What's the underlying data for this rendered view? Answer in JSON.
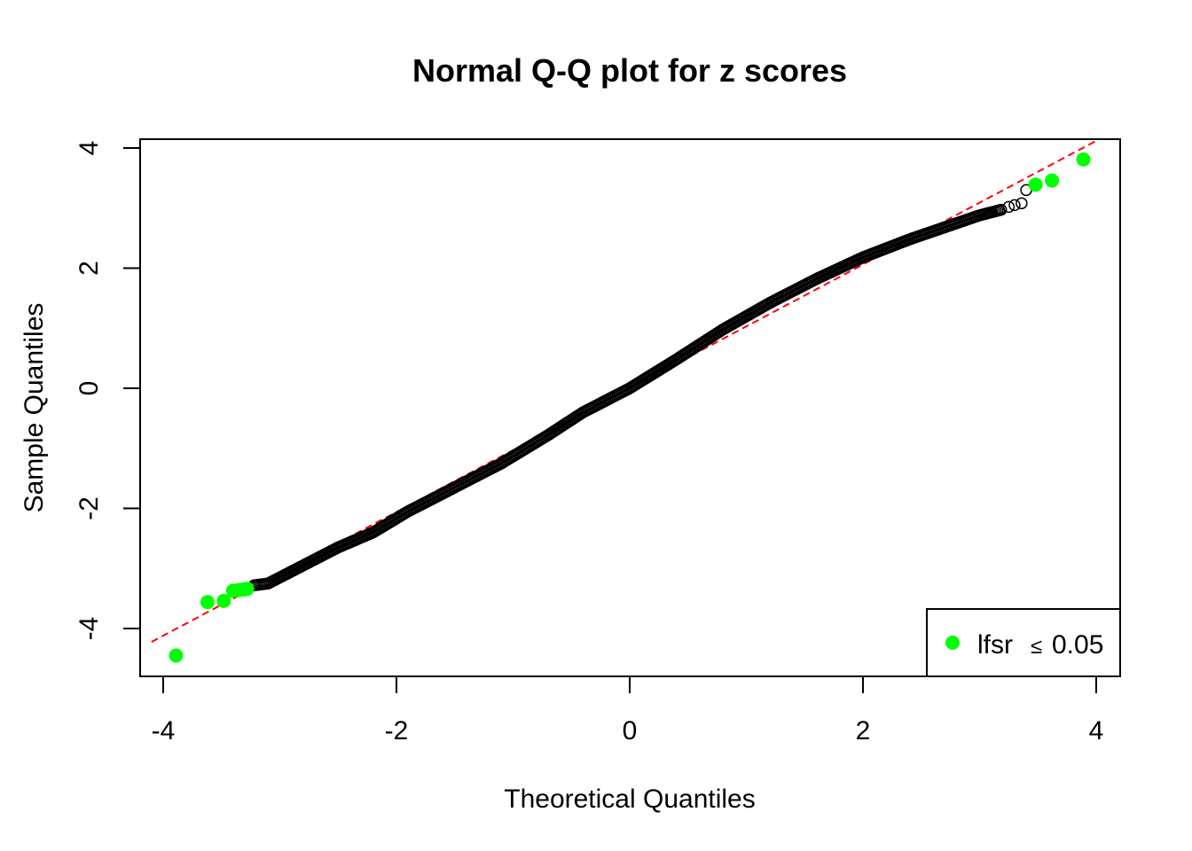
{
  "chart_data": {
    "type": "scatter",
    "title": "Normal Q-Q plot for z scores",
    "xlabel": "Theoretical Quantiles",
    "ylabel": "Sample Quantiles",
    "xlim": [
      -4.1,
      4.1
    ],
    "ylim": [
      -4.6,
      4.3
    ],
    "x_ticks": [
      -4,
      -2,
      0,
      2,
      4
    ],
    "y_ticks": [
      -4,
      -2,
      0,
      2,
      4
    ],
    "x_tick_labels": [
      "-4",
      "-2",
      "0",
      "2",
      "4"
    ],
    "y_tick_labels": [
      "-4",
      "-2",
      "0",
      "2",
      "4"
    ],
    "grid": false,
    "reference_line": {
      "style": "dashed",
      "color": "#ff0000",
      "intercept": 0.0,
      "slope": 1.03
    },
    "qq_curve": {
      "description": "dense run of black open circles",
      "color": "#000000",
      "knots": [
        [
          -3.22,
          -3.28
        ],
        [
          -3.1,
          -3.25
        ],
        [
          -2.9,
          -3.05
        ],
        [
          -2.7,
          -2.85
        ],
        [
          -2.5,
          -2.65
        ],
        [
          -2.2,
          -2.4
        ],
        [
          -1.9,
          -2.05
        ],
        [
          -1.5,
          -1.65
        ],
        [
          -1.1,
          -1.25
        ],
        [
          -0.7,
          -0.78
        ],
        [
          -0.4,
          -0.4
        ],
        [
          0.0,
          0.0
        ],
        [
          0.4,
          0.48
        ],
        [
          0.8,
          0.98
        ],
        [
          1.2,
          1.42
        ],
        [
          1.6,
          1.82
        ],
        [
          2.0,
          2.18
        ],
        [
          2.4,
          2.48
        ],
        [
          2.7,
          2.68
        ],
        [
          3.0,
          2.88
        ],
        [
          3.2,
          2.98
        ]
      ]
    },
    "extra_open_points": [
      {
        "x": 3.25,
        "y": 3.02
      },
      {
        "x": 3.3,
        "y": 3.05
      },
      {
        "x": 3.36,
        "y": 3.08
      },
      {
        "x": 3.4,
        "y": 3.3
      }
    ],
    "highlight_series": {
      "name": "lfsr",
      "color": "#00ff00",
      "points": [
        {
          "x": -3.89,
          "y": -4.45
        },
        {
          "x": -3.62,
          "y": -3.56
        },
        {
          "x": -3.48,
          "y": -3.54
        },
        {
          "x": -3.4,
          "y": -3.37
        },
        {
          "x": -3.35,
          "y": -3.36
        },
        {
          "x": -3.31,
          "y": -3.35
        },
        {
          "x": -3.28,
          "y": -3.34
        },
        {
          "x": 3.48,
          "y": 3.39
        },
        {
          "x": 3.62,
          "y": 3.46
        },
        {
          "x": 3.89,
          "y": 3.81
        }
      ]
    },
    "legend": {
      "position": "bottom-right",
      "label": "lfsr",
      "symbol": "≤",
      "value": "0.05",
      "marker_color": "#00ff00"
    }
  }
}
